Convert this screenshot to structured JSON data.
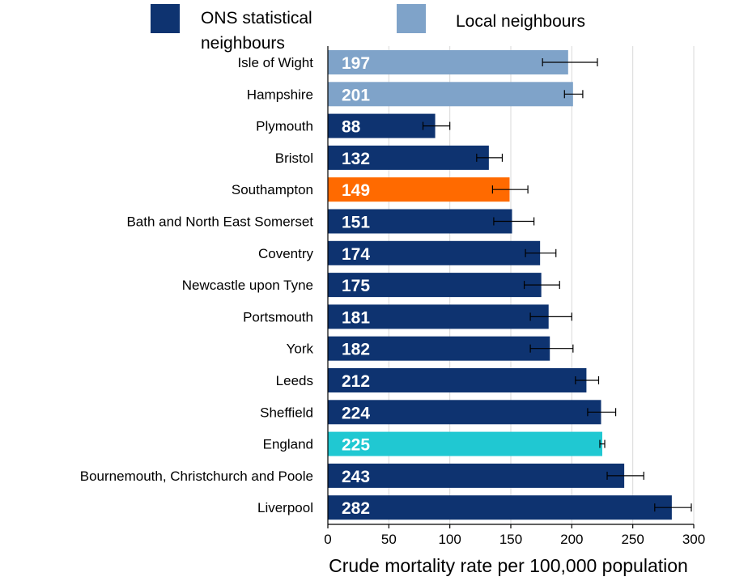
{
  "chart_data": {
    "type": "bar",
    "orientation": "horizontal",
    "title": "",
    "xlabel": "Crude mortality rate per 100,000 population",
    "xlim": [
      0,
      300
    ],
    "xticks": [
      0,
      50,
      100,
      150,
      200,
      250,
      300
    ],
    "grid": true,
    "legend_position": "top",
    "legend": [
      {
        "label": "ONS statistical neighbours",
        "color": "#0e3370"
      },
      {
        "label": "Local neighbours",
        "color": "#7fa3c9"
      }
    ],
    "categories": [
      "Isle of Wight",
      "Hampshire",
      "Plymouth",
      "Bristol",
      "Southampton",
      "Bath and North East Somerset",
      "Coventry",
      "Newcastle upon Tyne",
      "Portsmouth",
      "York",
      "Leeds",
      "Sheffield",
      "England",
      "Bournemouth, Christchurch and Poole",
      "Liverpool"
    ],
    "values": [
      197,
      201,
      88,
      132,
      149,
      151,
      174,
      175,
      181,
      182,
      212,
      224,
      225,
      243,
      282
    ],
    "error_low": [
      176,
      194,
      78,
      122,
      135,
      136,
      162,
      161,
      166,
      166,
      203,
      213,
      223,
      229,
      268
    ],
    "error_high": [
      221,
      209,
      100,
      143,
      164,
      169,
      187,
      190,
      200,
      201,
      222,
      236,
      227,
      259,
      298
    ],
    "colors": [
      "#7fa3c9",
      "#7fa3c9",
      "#0e3370",
      "#0e3370",
      "#ff6a00",
      "#0e3370",
      "#0e3370",
      "#0e3370",
      "#0e3370",
      "#0e3370",
      "#0e3370",
      "#0e3370",
      "#20c8d2",
      "#0e3370",
      "#0e3370"
    ]
  }
}
